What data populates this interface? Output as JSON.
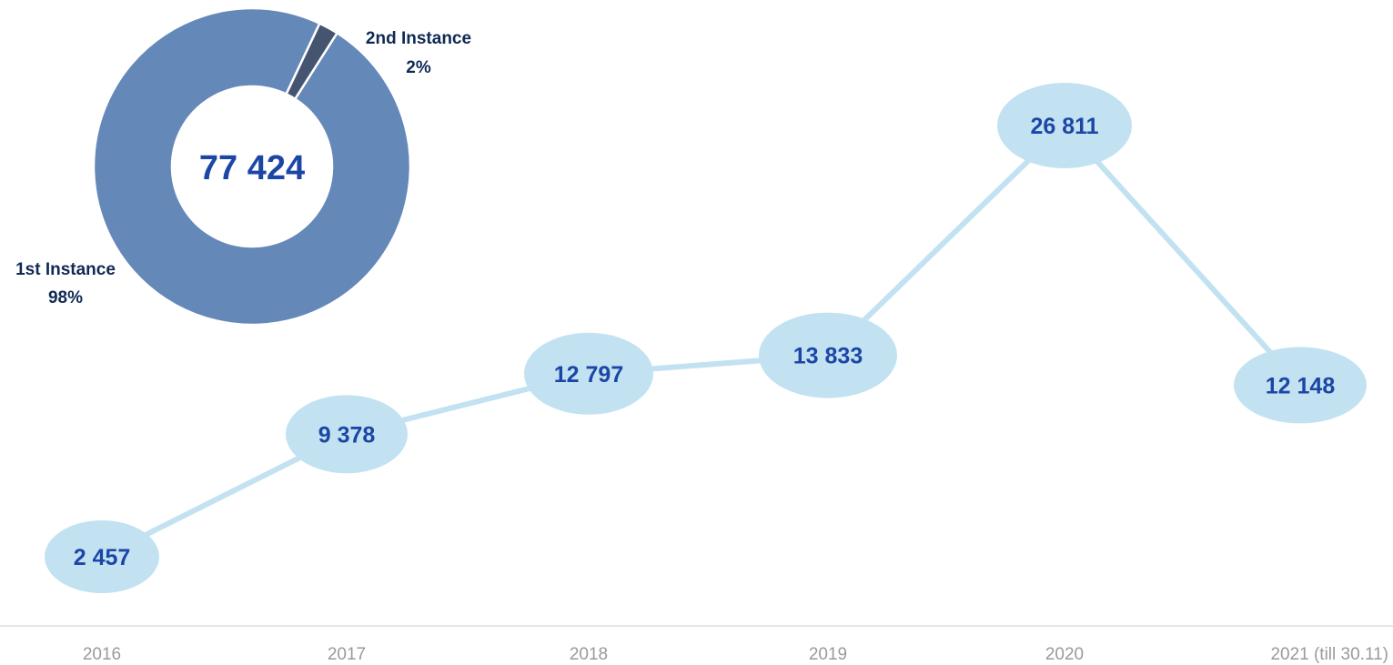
{
  "chart_data": [
    {
      "type": "line",
      "x": [
        "2016",
        "2017",
        "2018",
        "2019",
        "2020",
        "2021 (till 30.11)"
      ],
      "series": [
        {
          "values": [
            2457,
            9378,
            12797,
            13833,
            26811,
            12148
          ]
        }
      ],
      "data_labels": [
        "2 457",
        "9 378",
        "12 797",
        "13 833",
        "26 811",
        "12 148"
      ],
      "grid": false,
      "colors": {
        "line": "#c2e2f2",
        "bubble": "#c2e2f2",
        "label": "#1c46a6",
        "tick": "#9a9a9a",
        "axis": "#e6e6e6"
      }
    },
    {
      "type": "pie",
      "subtype": "donut",
      "categories": [
        "1st Instance",
        "2nd Instance"
      ],
      "values": [
        98,
        2
      ],
      "value_labels": [
        "98%",
        "2%"
      ],
      "center_label": "77 424",
      "colors": [
        "#6488b8",
        "#46556f"
      ],
      "label_color": "#0f2a55",
      "center_color": "#1c46a6"
    }
  ]
}
